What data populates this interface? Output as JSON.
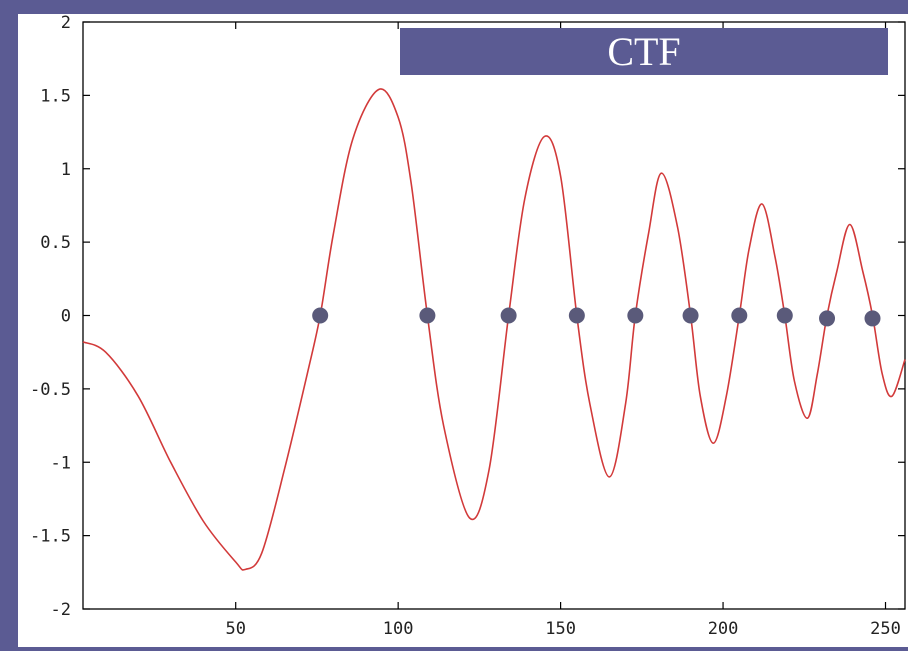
{
  "chart_data": {
    "type": "line",
    "title": "CTF",
    "xlabel": "",
    "ylabel": "",
    "xlim": [
      3,
      256
    ],
    "ylim": [
      -2,
      2
    ],
    "x_ticks": [
      {
        "value": 50,
        "label": "50"
      },
      {
        "value": 100,
        "label": "100"
      },
      {
        "value": 150,
        "label": "150"
      },
      {
        "value": 200,
        "label": "200"
      },
      {
        "value": 250,
        "label": "250"
      }
    ],
    "y_ticks": [
      {
        "value": 2,
        "label": "2"
      },
      {
        "value": 1.5,
        "label": "1.5"
      },
      {
        "value": 1,
        "label": "1"
      },
      {
        "value": 0.5,
        "label": "0.5"
      },
      {
        "value": 0,
        "label": "0"
      },
      {
        "value": -0.5,
        "label": "-0.5"
      },
      {
        "value": -1,
        "label": "-1"
      },
      {
        "value": -1.5,
        "label": "-1.5"
      },
      {
        "value": -2,
        "label": "-2"
      }
    ],
    "grid": false,
    "series": [
      {
        "color": "#d23a3a",
        "x": [
          3,
          10,
          20,
          30,
          40,
          50,
          53,
          58,
          65,
          72,
          76,
          80,
          86,
          94,
          100,
          104,
          109,
          114,
          122,
          128,
          134,
          139,
          145,
          150,
          155,
          159,
          165,
          170,
          173,
          177,
          181,
          186,
          190,
          193,
          197,
          201,
          205,
          208,
          212,
          216,
          219,
          222,
          226,
          229,
          232,
          235,
          239,
          243,
          246,
          249,
          252,
          256
        ],
        "y": [
          -0.18,
          -0.25,
          -0.55,
          -1.0,
          -1.4,
          -1.68,
          -1.73,
          -1.62,
          -1.05,
          -0.4,
          0.0,
          0.55,
          1.2,
          1.54,
          1.35,
          0.9,
          0.0,
          -0.75,
          -1.38,
          -1.05,
          0.0,
          0.8,
          1.22,
          0.95,
          0.0,
          -0.6,
          -1.1,
          -0.6,
          0.0,
          0.55,
          0.97,
          0.6,
          0.0,
          -0.55,
          -0.87,
          -0.55,
          0.0,
          0.45,
          0.76,
          0.4,
          0.0,
          -0.45,
          -0.7,
          -0.4,
          0.0,
          0.3,
          0.62,
          0.3,
          0.0,
          -0.4,
          -0.55,
          -0.3
        ]
      }
    ],
    "zero_markers": {
      "color": "#5a5a7a",
      "x": [
        76,
        109,
        134,
        155,
        173,
        190,
        205,
        219,
        232,
        246
      ],
      "y": [
        0,
        0,
        0,
        0,
        0,
        0,
        0,
        0,
        -0.02,
        -0.02
      ]
    }
  },
  "colors": {
    "frame": "#5b5b93",
    "plot_background": "#ffffff",
    "banner": "#5b5b93",
    "banner_text": "#ffffff"
  }
}
